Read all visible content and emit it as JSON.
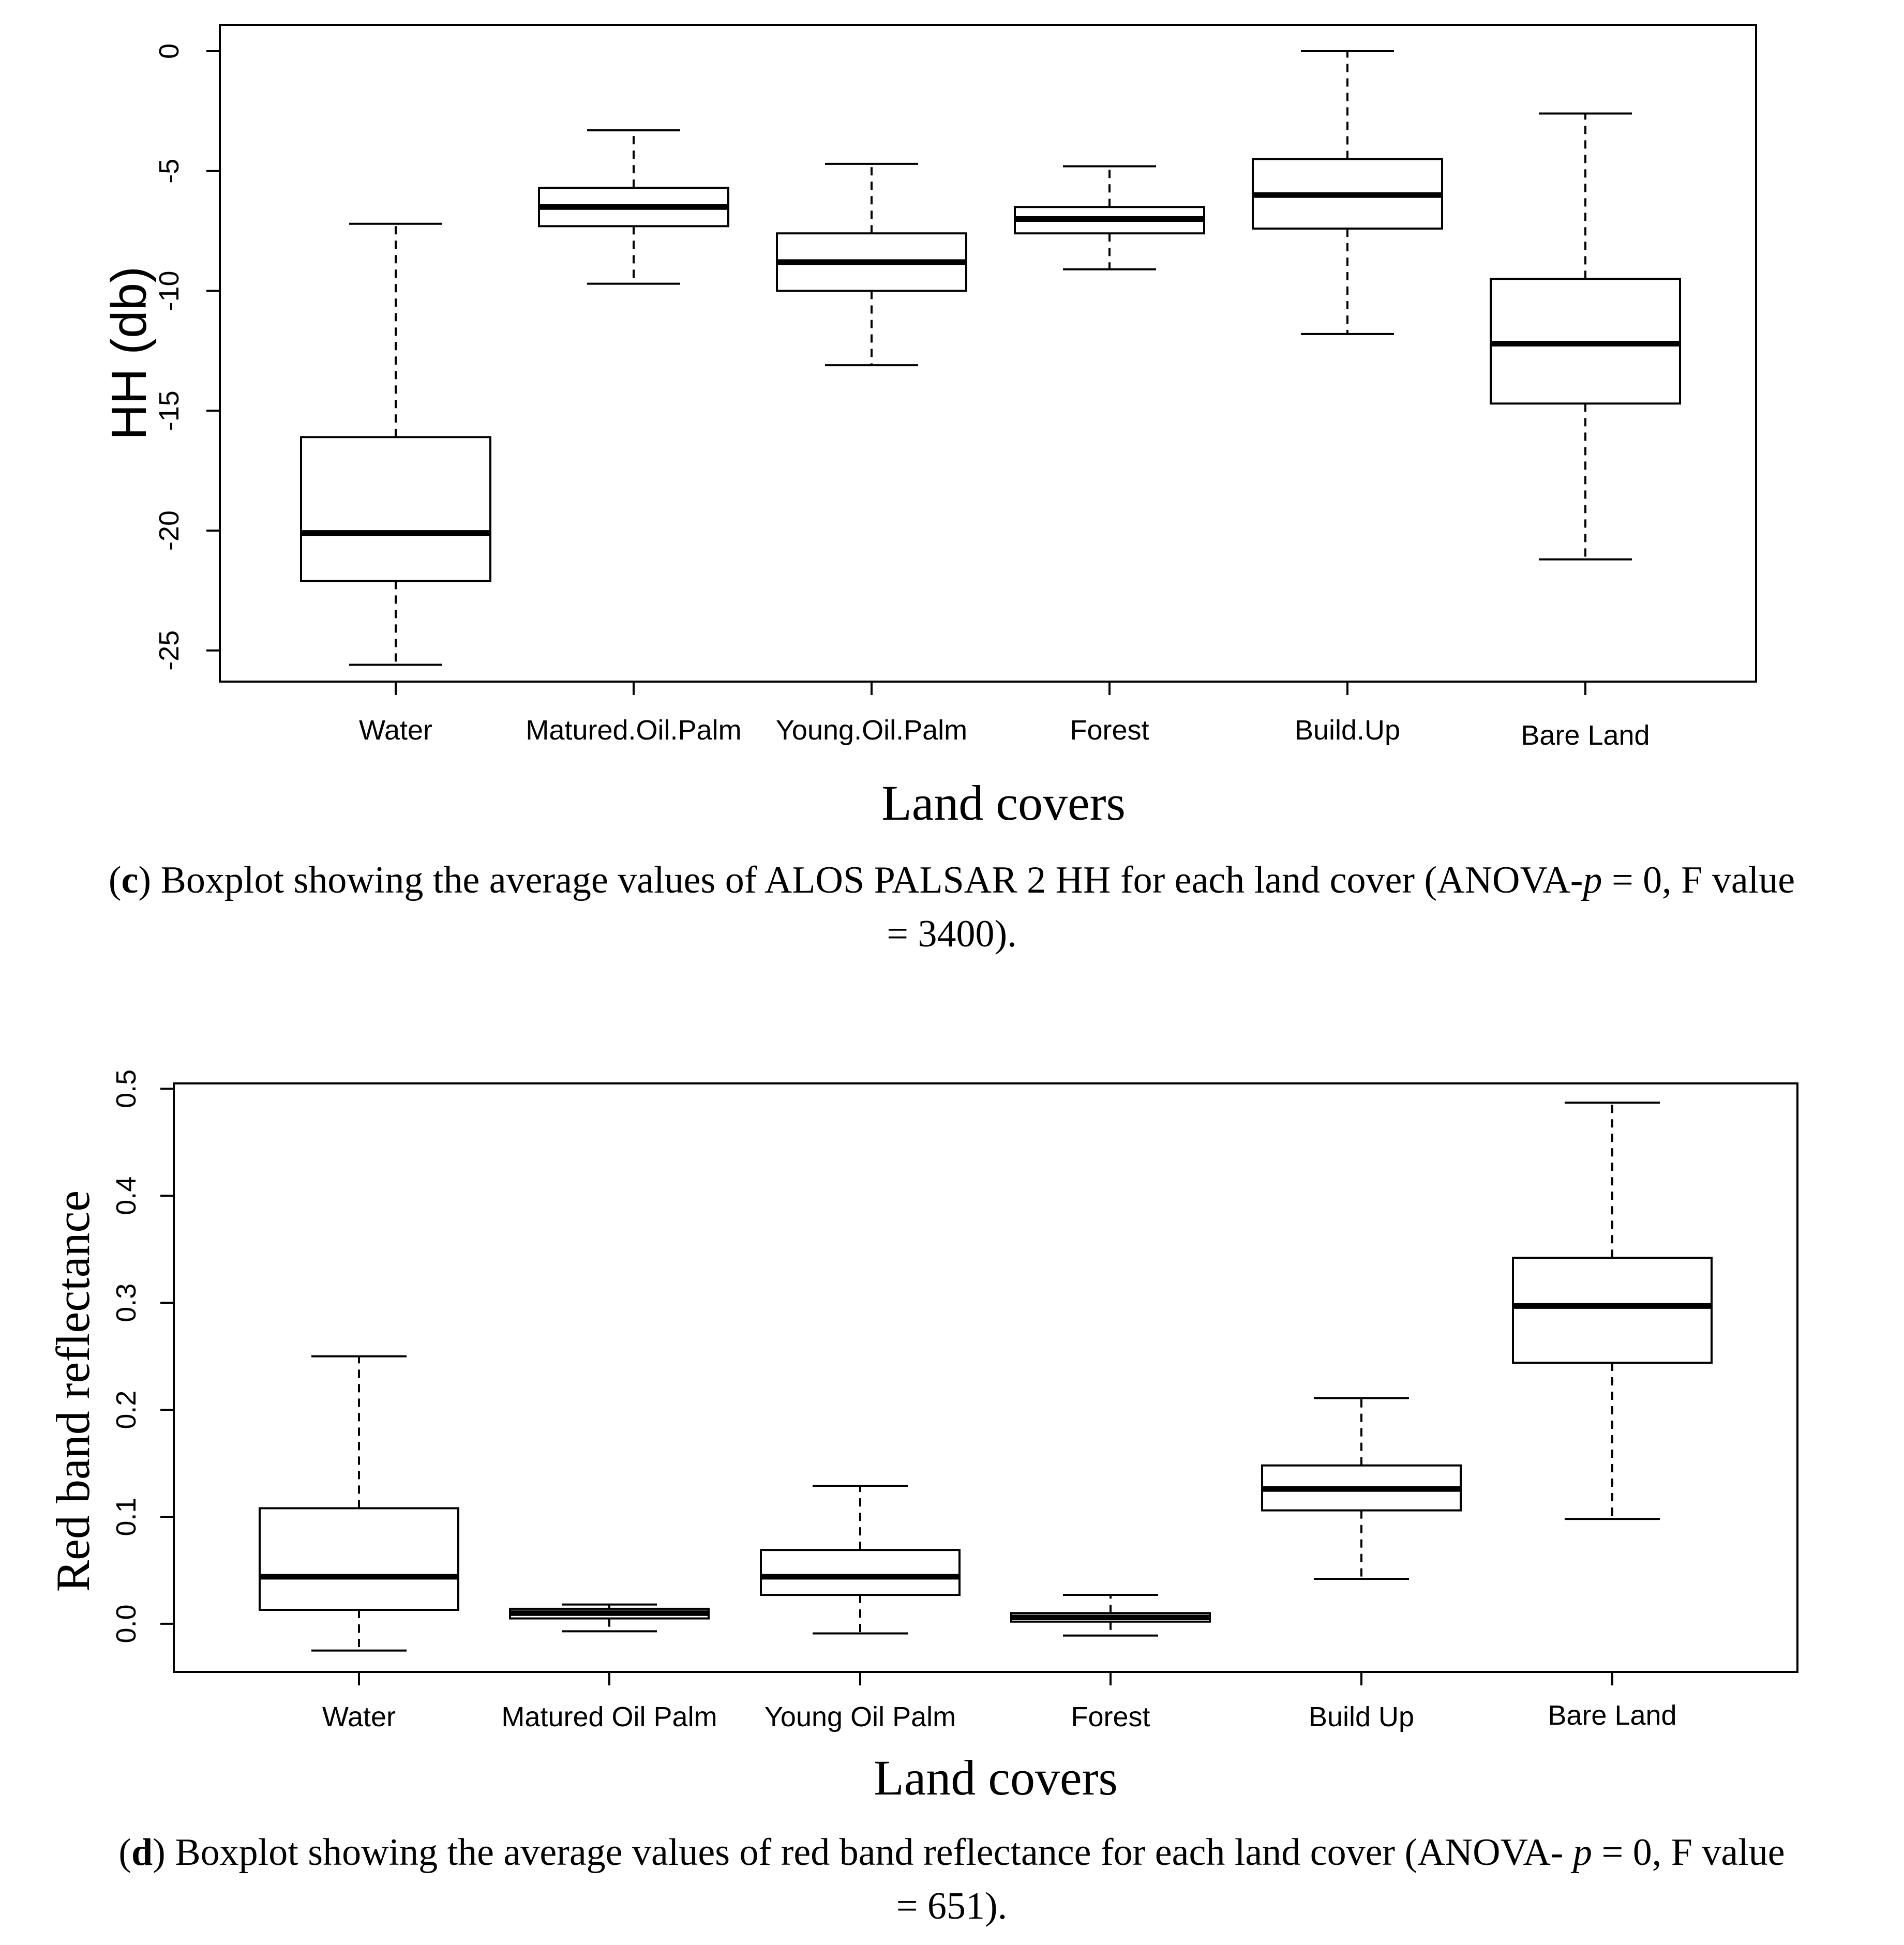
{
  "chart_data": [
    {
      "type": "boxplot",
      "panel": "c",
      "ylabel": "HH (db)",
      "xlabel": "Land covers",
      "ylim": [
        -26.3,
        1.1
      ],
      "yticks": [
        0,
        -5,
        -10,
        -15,
        -20,
        -25
      ],
      "ytick_labels": [
        "0",
        "-5",
        "-10",
        "-15",
        "-20",
        "-25"
      ],
      "categories": [
        "Water",
        "Matured.Oil.Palm",
        "Young.Oil.Palm",
        "Forest",
        "Build.Up",
        "Bare Land"
      ],
      "boxes": [
        {
          "whisker_low": -25.6,
          "q1": -22.1,
          "median": -20.1,
          "q3": -16.1,
          "whisker_high": -7.2
        },
        {
          "whisker_low": -9.7,
          "q1": -7.3,
          "median": -6.5,
          "q3": -5.7,
          "whisker_high": -3.3
        },
        {
          "whisker_low": -13.1,
          "q1": -10.0,
          "median": -8.8,
          "q3": -7.6,
          "whisker_high": -4.7
        },
        {
          "whisker_low": -9.1,
          "q1": -7.6,
          "median": -7.0,
          "q3": -6.5,
          "whisker_high": -4.8
        },
        {
          "whisker_low": -11.8,
          "q1": -7.4,
          "median": -6.0,
          "q3": -4.5,
          "whisker_high": 0.0
        },
        {
          "whisker_low": -21.2,
          "q1": -14.7,
          "median": -12.2,
          "q3": -9.5,
          "whisker_high": -2.6
        }
      ]
    },
    {
      "type": "boxplot",
      "panel": "d",
      "ylabel": "Red band reflectance",
      "xlabel": "Land covers",
      "ylim": [
        -0.045,
        0.505
      ],
      "yticks": [
        0.0,
        0.1,
        0.2,
        0.3,
        0.4,
        0.5
      ],
      "ytick_labels": [
        "0.0",
        "0.1",
        "0.2",
        "0.3",
        "0.4",
        "0.5"
      ],
      "categories": [
        "Water",
        "Matured Oil Palm",
        "Young Oil Palm",
        "Forest",
        "Build Up",
        "Bare Land"
      ],
      "boxes": [
        {
          "whisker_low": -0.025,
          "q1": 0.013,
          "median": 0.044,
          "q3": 0.108,
          "whisker_high": 0.25
        },
        {
          "whisker_low": -0.007,
          "q1": 0.005,
          "median": 0.01,
          "q3": 0.014,
          "whisker_high": 0.018
        },
        {
          "whisker_low": -0.009,
          "q1": 0.027,
          "median": 0.044,
          "q3": 0.069,
          "whisker_high": 0.129
        },
        {
          "whisker_low": -0.011,
          "q1": 0.002,
          "median": 0.006,
          "q3": 0.01,
          "whisker_high": 0.027
        },
        {
          "whisker_low": 0.042,
          "q1": 0.106,
          "median": 0.126,
          "q3": 0.148,
          "whisker_high": 0.211
        },
        {
          "whisker_low": 0.098,
          "q1": 0.244,
          "median": 0.297,
          "q3": 0.342,
          "whisker_high": 0.487
        }
      ]
    }
  ],
  "captions": {
    "c": {
      "letter": "c",
      "lead": "Boxplot showing the average values of ALOS PALSAR 2 HH for each land cover (ANOVA-",
      "p": "p",
      "mid": " = 0, F value",
      "line2": "= 3400)."
    },
    "d": {
      "letter": "d",
      "lead": "Boxplot showing the average values of red band reflectance for each land cover (ANOVA- ",
      "p": "p",
      "mid": " = 0, F value",
      "line2": "= 651)."
    }
  }
}
